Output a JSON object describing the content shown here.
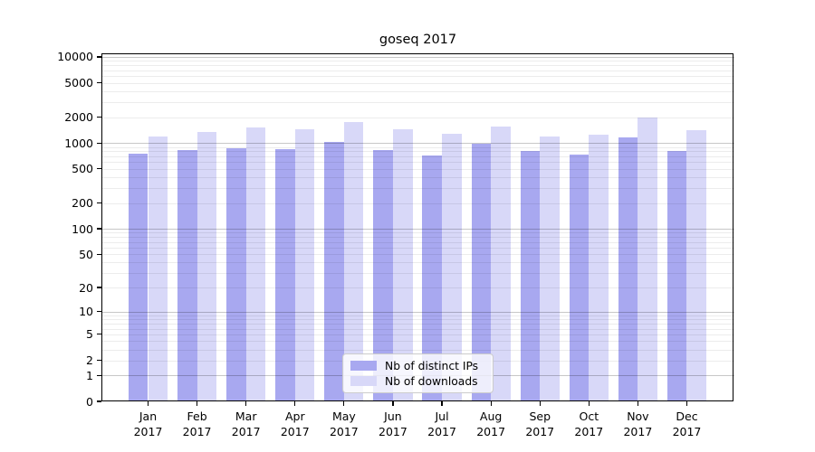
{
  "chart_data": {
    "type": "bar",
    "title": "goseq 2017",
    "categories": [
      "Jan",
      "Feb",
      "Mar",
      "Apr",
      "May",
      "Jun",
      "Jul",
      "Aug",
      "Sep",
      "Oct",
      "Nov",
      "Dec"
    ],
    "x_year_label": "2017",
    "series": [
      {
        "name": "Nb of distinct IPs",
        "color": "#a8a8f0",
        "values": [
          750,
          830,
          875,
          850,
          1030,
          825,
          720,
          975,
          800,
          730,
          1170,
          810
        ]
      },
      {
        "name": "Nb of downloads",
        "color": "#d8d8f8",
        "values": [
          1200,
          1340,
          1525,
          1455,
          1740,
          1445,
          1270,
          1555,
          1190,
          1260,
          1980,
          1420
        ]
      }
    ],
    "y_ticks": [
      10000,
      5000,
      2000,
      1000,
      500,
      200,
      100,
      50,
      20,
      10,
      5,
      2,
      1,
      0
    ],
    "y_scale": "log10(value+1)",
    "ylim": [
      0,
      10000
    ],
    "grid": "horizontal major + minor (log decades 2-9)",
    "legend_position": "inside bottom-center"
  }
}
